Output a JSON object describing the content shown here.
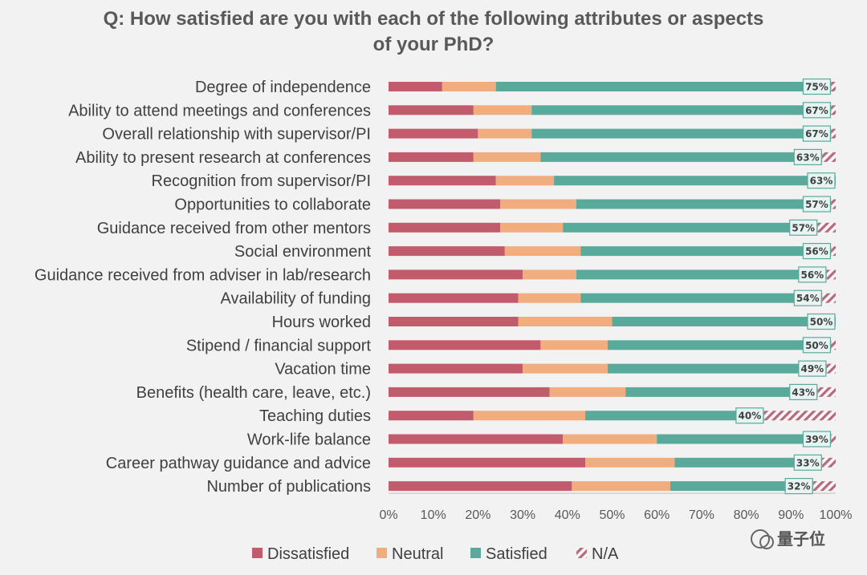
{
  "chart_data": {
    "type": "bar",
    "orientation": "horizontal",
    "stacked": true,
    "title_line1": "Q: How satisfied are you with each of the following attributes or aspects",
    "title_line2": "of your PhD?",
    "categories": [
      "Degree of independence",
      "Ability to attend meetings and conferences",
      "Overall relationship with supervisor/PI",
      "Ability to present research at conferences",
      "Recognition from supervisor/PI",
      "Opportunities to collaborate",
      "Guidance received from other mentors",
      "Social environment",
      "Guidance received from adviser in lab/research",
      "Availability of funding",
      "Hours worked",
      "Stipend / financial support",
      "Vacation time",
      "Benefits (health care, leave, etc.)",
      "Teaching duties",
      "Work-life balance",
      "Career pathway guidance and advice",
      "Number of publications"
    ],
    "series": [
      {
        "name": "Dissatisfied",
        "color": "#c25b6c",
        "values": [
          12,
          19,
          20,
          19,
          24,
          25,
          25,
          26,
          30,
          29,
          29,
          34,
          30,
          36,
          19,
          39,
          44,
          41
        ]
      },
      {
        "name": "Neutral",
        "color": "#f2ad7e",
        "values": [
          12,
          13,
          12,
          15,
          13,
          17,
          14,
          17,
          12,
          14,
          21,
          15,
          19,
          17,
          25,
          21,
          20,
          22
        ]
      },
      {
        "name": "Satisfied",
        "color": "#5aaa9c",
        "values": [
          75,
          67,
          67,
          63,
          63,
          57,
          57,
          56,
          56,
          54,
          50,
          50,
          49,
          43,
          40,
          39,
          33,
          32
        ]
      },
      {
        "name": "N/A",
        "color": "#b56a7e",
        "values": [
          1,
          1,
          1,
          3,
          0,
          1,
          4,
          1,
          2,
          3,
          0,
          1,
          2,
          4,
          16,
          1,
          3,
          5
        ]
      }
    ],
    "data_labels": [
      "75%",
      "67%",
      "67%",
      "63%",
      "63%",
      "57%",
      "57%",
      "56%",
      "56%",
      "54%",
      "50%",
      "50%",
      "49%",
      "43%",
      "40%",
      "39%",
      "33%",
      "32%"
    ],
    "x_ticks": [
      "0%",
      "10%",
      "20%",
      "30%",
      "40%",
      "50%",
      "60%",
      "70%",
      "80%",
      "90%",
      "100%"
    ],
    "xlim": [
      0,
      100
    ],
    "grid": false,
    "legend_position": "bottom",
    "legend": [
      "Dissatisfied",
      "Neutral",
      "Satisfied",
      "N/A"
    ]
  },
  "watermark": "量子位"
}
